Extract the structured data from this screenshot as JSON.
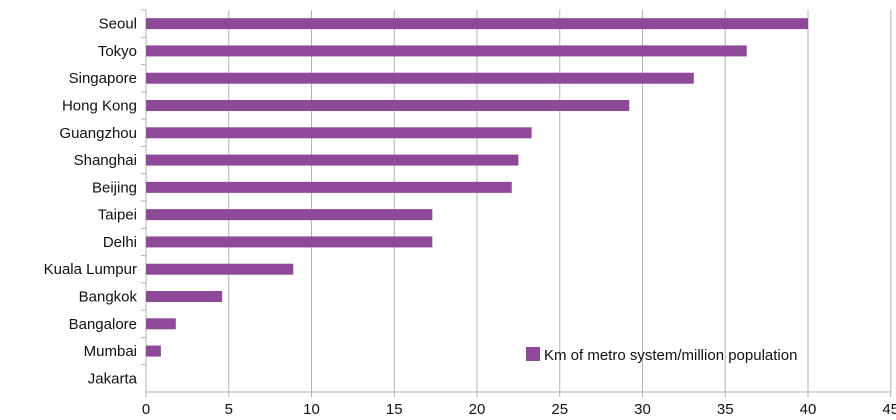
{
  "chart_data": {
    "type": "bar",
    "orientation": "horizontal",
    "categories": [
      "Seoul",
      "Tokyo",
      "Singapore",
      "Hong Kong",
      "Guangzhou",
      "Shanghai",
      "Beijing",
      "Taipei",
      "Delhi",
      "Kuala Lumpur",
      "Bangkok",
      "Bangalore",
      "Mumbai",
      "Jakarta"
    ],
    "series": [
      {
        "name": "Km of metro system/million population",
        "values": [
          40.0,
          36.3,
          33.1,
          29.2,
          23.3,
          22.5,
          22.1,
          17.3,
          17.3,
          8.9,
          4.6,
          1.8,
          0.9,
          0.0
        ],
        "color": "#8e4a99"
      }
    ],
    "xlim": [
      0,
      45
    ],
    "xticks": [
      "0",
      "5",
      "10",
      "15",
      "20",
      "25",
      "30",
      "35",
      "40",
      "45"
    ],
    "grid": true,
    "legend_position": "bottom-right",
    "title": "",
    "xlabel": "",
    "ylabel": ""
  }
}
